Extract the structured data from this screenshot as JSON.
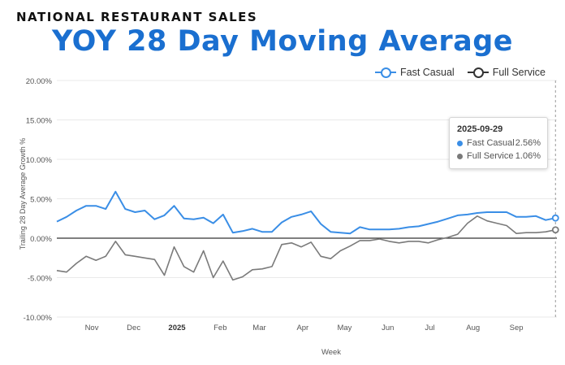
{
  "header": {
    "kicker": "NATIONAL RESTAURANT SALES",
    "title": "YOY 28 Day Moving Average"
  },
  "colors": {
    "fast_casual": "#3a8ee6",
    "full_service": "#7a7a7a",
    "title": "#1a6fd0"
  },
  "chart_data": {
    "type": "line",
    "title": "YOY 28 Day Moving Average",
    "xlabel": "Week",
    "ylabel": "Trailing 28 Day Average Growth %",
    "ylim": [
      -10,
      20
    ],
    "xlim": [
      "2024-10-07",
      "2025-09-30"
    ],
    "y_ticks": [
      "-10.00%",
      "-5.00%",
      "0.00%",
      "5.00%",
      "10.00%",
      "15.00%",
      "20.00%"
    ],
    "x_ticks": [
      {
        "label": "Nov",
        "date": "2024-11-01"
      },
      {
        "label": "Dec",
        "date": "2024-12-01"
      },
      {
        "label": "2025",
        "date": "2025-01-01"
      },
      {
        "label": "Feb",
        "date": "2025-02-01"
      },
      {
        "label": "Mar",
        "date": "2025-03-01"
      },
      {
        "label": "Apr",
        "date": "2025-04-01"
      },
      {
        "label": "May",
        "date": "2025-05-01"
      },
      {
        "label": "Jun",
        "date": "2025-06-01"
      },
      {
        "label": "Jul",
        "date": "2025-07-01"
      },
      {
        "label": "Aug",
        "date": "2025-08-01"
      },
      {
        "label": "Sep",
        "date": "2025-09-01"
      }
    ],
    "grid": "horizontal",
    "legend": "top-right",
    "x": [
      "2024-10-07",
      "2024-10-14",
      "2024-10-21",
      "2024-10-28",
      "2024-11-04",
      "2024-11-11",
      "2024-11-18",
      "2024-11-25",
      "2024-12-02",
      "2024-12-09",
      "2024-12-16",
      "2024-12-23",
      "2024-12-30",
      "2025-01-06",
      "2025-01-13",
      "2025-01-20",
      "2025-01-27",
      "2025-02-03",
      "2025-02-10",
      "2025-02-17",
      "2025-02-24",
      "2025-03-03",
      "2025-03-10",
      "2025-03-17",
      "2025-03-24",
      "2025-03-31",
      "2025-04-07",
      "2025-04-14",
      "2025-04-21",
      "2025-04-28",
      "2025-05-05",
      "2025-05-12",
      "2025-05-19",
      "2025-05-26",
      "2025-06-02",
      "2025-06-09",
      "2025-06-16",
      "2025-06-23",
      "2025-06-30",
      "2025-07-07",
      "2025-07-14",
      "2025-07-21",
      "2025-07-28",
      "2025-08-04",
      "2025-08-11",
      "2025-08-18",
      "2025-08-25",
      "2025-09-01",
      "2025-09-08",
      "2025-09-15",
      "2025-09-22",
      "2025-09-29"
    ],
    "series": [
      {
        "name": "Fast Casual",
        "values": [
          2.1,
          2.7,
          3.5,
          4.1,
          4.1,
          3.7,
          5.9,
          3.7,
          3.3,
          3.5,
          2.4,
          2.9,
          4.1,
          2.5,
          2.4,
          2.6,
          1.9,
          3.0,
          0.7,
          0.9,
          1.2,
          0.8,
          0.8,
          2.0,
          2.7,
          3.0,
          3.4,
          1.8,
          0.8,
          0.7,
          0.6,
          1.4,
          1.1,
          1.1,
          1.1,
          1.2,
          1.4,
          1.5,
          1.8,
          2.1,
          2.5,
          2.9,
          3.0,
          3.2,
          3.3,
          3.3,
          3.3,
          2.7,
          2.7,
          2.8,
          2.3,
          2.56
        ]
      },
      {
        "name": "Full Service",
        "values": [
          -4.1,
          -4.3,
          -3.2,
          -2.3,
          -2.8,
          -2.3,
          -0.4,
          -2.1,
          -2.3,
          -2.5,
          -2.7,
          -4.7,
          -1.1,
          -3.6,
          -4.3,
          -1.6,
          -5.0,
          -2.9,
          -5.3,
          -4.9,
          -4.0,
          -3.9,
          -3.6,
          -0.8,
          -0.6,
          -1.1,
          -0.5,
          -2.3,
          -2.6,
          -1.6,
          -1.0,
          -0.3,
          -0.3,
          -0.1,
          -0.4,
          -0.6,
          -0.4,
          -0.4,
          -0.6,
          -0.2,
          0.1,
          0.5,
          1.9,
          2.8,
          2.2,
          1.9,
          1.6,
          0.6,
          0.7,
          0.7,
          0.8,
          1.06
        ]
      }
    ],
    "hover": {
      "date": "2025-09-29",
      "items": [
        {
          "name": "Fast Casual",
          "value": "2.56%"
        },
        {
          "name": "Full Service",
          "value": "1.06%"
        }
      ]
    }
  }
}
